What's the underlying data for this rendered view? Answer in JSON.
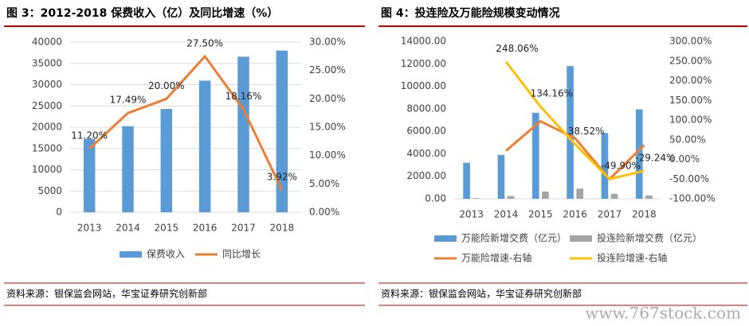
{
  "chart_data": [
    {
      "type": "bar",
      "title": "图 3：2012-2018 保费收入（亿）及同比增速（%）",
      "categories": [
        "2013",
        "2014",
        "2015",
        "2016",
        "2017",
        "2018"
      ],
      "series": [
        {
          "name": "保费收入",
          "color": "#5b9bd5",
          "values": [
            17222,
            20235,
            24283,
            30959,
            36581,
            38017
          ]
        },
        {
          "name": "同比增长",
          "color": "#ed7d31",
          "type": "line",
          "axis": "y2",
          "values": [
            11.2,
            17.49,
            20.0,
            27.5,
            18.16,
            3.92
          ],
          "value_labels": [
            "11.20%",
            "17.49%",
            "20.00%",
            "27.50%",
            "18.16%",
            "3.92%"
          ]
        }
      ],
      "ylim": [
        0,
        40000
      ],
      "yticks": [
        0,
        5000,
        10000,
        15000,
        20000,
        25000,
        30000,
        35000,
        40000
      ],
      "y2lim": [
        0,
        30
      ],
      "y2ticks": [
        {
          "value": 0,
          "label": "0.00%"
        },
        {
          "value": 5,
          "label": "5.00%"
        },
        {
          "value": 10,
          "label": "10.00%"
        },
        {
          "value": 15,
          "label": "15.00%"
        },
        {
          "value": 20,
          "label": "20.00%"
        },
        {
          "value": 25,
          "label": "25.00%"
        },
        {
          "value": 30,
          "label": "30.00%"
        }
      ],
      "grid": true,
      "legend": "bottom",
      "source": "资料来源：银保监会网站，华宝证券研究创新部"
    },
    {
      "type": "bar",
      "title": "图 4：投连险及万能险规模变动情况",
      "categories": [
        "2013",
        "2014",
        "2015",
        "2016",
        "2017",
        "2018"
      ],
      "series": [
        {
          "name": "万能险新增交费（亿元）",
          "color": "#5b9bd5",
          "values": [
            3200,
            3900,
            7650,
            11800,
            5850,
            7950
          ]
        },
        {
          "name": "投连险新增交费（亿元）",
          "color": "#a5a5a5",
          "values": [
            60,
            250,
            650,
            900,
            450,
            300
          ]
        },
        {
          "name": "万能险增速-右轴",
          "color": "#ed7d31",
          "type": "line",
          "axis": "y2",
          "values": [
            null,
            22,
            97,
            54,
            -50,
            36
          ]
        },
        {
          "name": "投连险增速-右轴",
          "color": "#ffc000",
          "type": "line",
          "axis": "y2",
          "values": [
            null,
            248.06,
            134.16,
            38.52,
            -49.9,
            -29.24
          ],
          "value_labels": [
            null,
            "248.06%",
            "134.16%",
            "38.52%",
            "-49.90%",
            "-29.24%"
          ]
        }
      ],
      "ylim": [
        0,
        14000
      ],
      "yticks": [
        {
          "value": 0,
          "label": "0.00"
        },
        {
          "value": 2000,
          "label": "2000.00"
        },
        {
          "value": 4000,
          "label": "4000.00"
        },
        {
          "value": 6000,
          "label": "6000.00"
        },
        {
          "value": 8000,
          "label": "8000.00"
        },
        {
          "value": 10000,
          "label": "10000.00"
        },
        {
          "value": 12000,
          "label": "12000.00"
        },
        {
          "value": 14000,
          "label": "14000.00"
        }
      ],
      "y2lim": [
        -100,
        300
      ],
      "y2ticks": [
        {
          "value": -100,
          "label": "-100.00%"
        },
        {
          "value": -50,
          "label": "-50.00%"
        },
        {
          "value": 0,
          "label": "0.00%"
        },
        {
          "value": 50,
          "label": "50.00%"
        },
        {
          "value": 100,
          "label": "100.00%"
        },
        {
          "value": 150,
          "label": "150.00%"
        },
        {
          "value": 200,
          "label": "200.00%"
        },
        {
          "value": 250,
          "label": "250.00%"
        },
        {
          "value": 300,
          "label": "300.00%"
        }
      ],
      "grid": false,
      "legend": "bottom",
      "source": "资料来源：银保监会网站，华宝证券研究创新部"
    }
  ],
  "watermark": "www.767stock.com"
}
